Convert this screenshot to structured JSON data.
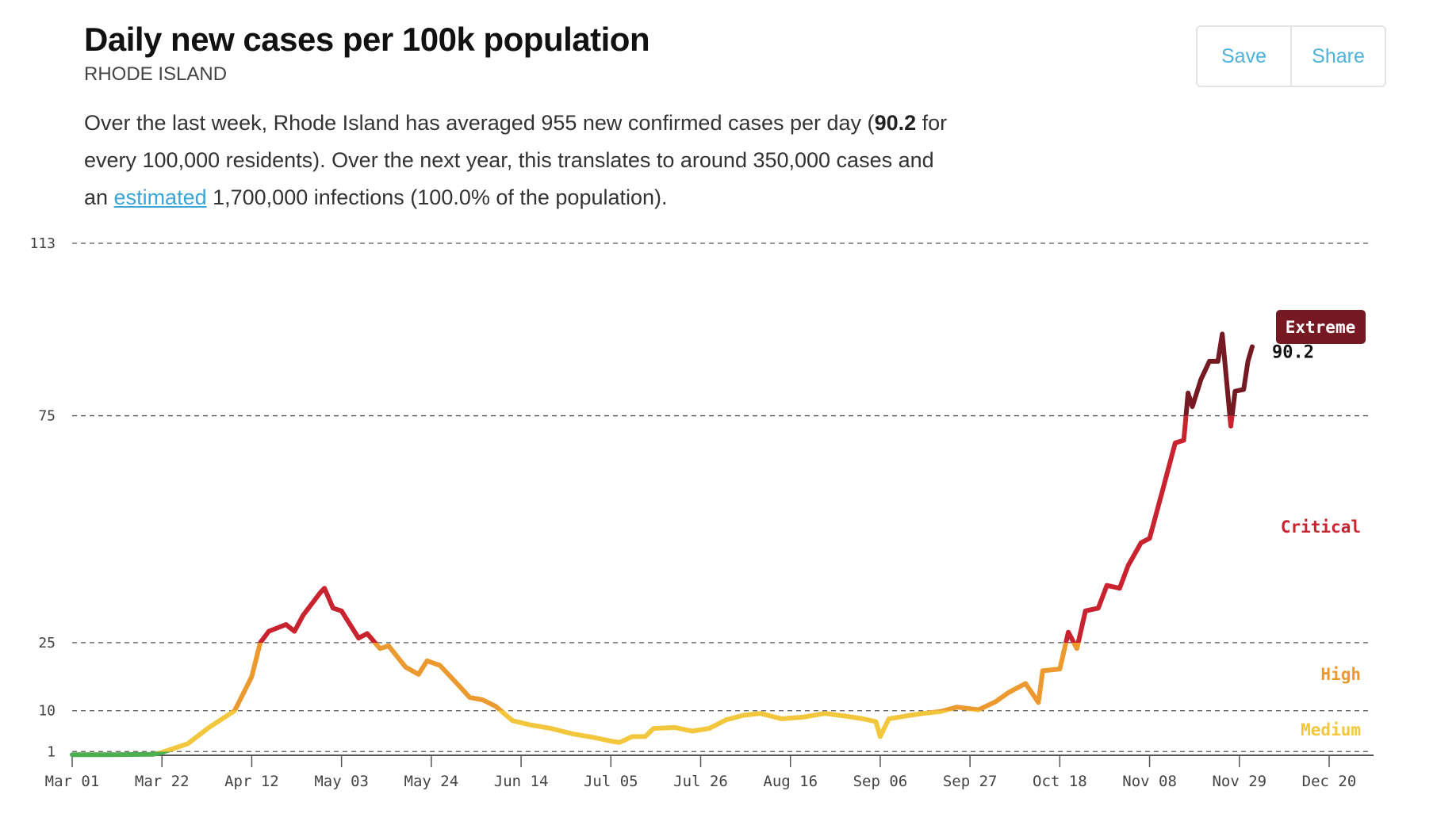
{
  "header": {
    "title": "Daily new cases per 100k population",
    "subtitle": "RHODE ISLAND",
    "summary": {
      "part1": "Over the last week, Rhode Island has averaged 955 new confirmed cases per day (",
      "bold": "90.2",
      "part2": " for every 100,000 residents). Over the next year, this translates to around 350,000 cases and an ",
      "link": "estimated",
      "part3": " 1,700,000 infections (100.0% of the population)."
    }
  },
  "toolbar": {
    "save_label": "Save",
    "share_label": "Share"
  },
  "colors": {
    "low": "#4caf50",
    "medium": "#f2c73d",
    "high": "#ec9a30",
    "critical": "#c9232f",
    "extreme": "#751a22",
    "link": "#3ba6d6"
  },
  "chart_data": {
    "type": "line",
    "y_ticks": [
      1,
      10,
      25,
      75,
      113
    ],
    "ylim": [
      0,
      113
    ],
    "x_ticks": [
      "Mar 01",
      "Mar 22",
      "Apr 12",
      "May 03",
      "May 24",
      "Jun 14",
      "Jul 05",
      "Jul 26",
      "Aug 16",
      "Sep 06",
      "Sep 27",
      "Oct 18",
      "Nov 08",
      "Nov 29",
      "Dec 20"
    ],
    "xlim": [
      "Mar 01",
      "Dec 20"
    ],
    "grid": "horizontal dashed",
    "thresholds": [
      1,
      10,
      25,
      75
    ],
    "levels": [
      {
        "label": "Extreme",
        "color": "#751a22",
        "boxed": true
      },
      {
        "label": "Critical",
        "color": "#c9232f"
      },
      {
        "label": "High",
        "color": "#ec9a30"
      },
      {
        "label": "Medium",
        "color": "#f2c73d"
      }
    ],
    "last_value_label": "90.2",
    "series": [
      {
        "x": [
          "Mar 01",
          "Mar 10",
          "Mar 20",
          "Mar 22",
          "Mar 28",
          "Apr 02",
          "Apr 08",
          "Apr 12",
          "Apr 14",
          "Apr 16",
          "Apr 20",
          "Apr 22",
          "Apr 24",
          "Apr 28",
          "Apr 29",
          "May 01",
          "May 03",
          "May 07",
          "May 09",
          "May 12",
          "May 14",
          "May 18",
          "May 21",
          "May 23",
          "May 26",
          "May 30",
          "Jun 02",
          "Jun 05",
          "Jun 08",
          "Jun 12",
          "Jun 16",
          "Jun 21",
          "Jun 26",
          "Jul 01",
          "Jul 05",
          "Jul 07",
          "Jul 10",
          "Jul 13",
          "Jul 15",
          "Jul 20",
          "Jul 24",
          "Jul 28",
          "Aug 01",
          "Aug 05",
          "Aug 09",
          "Aug 14",
          "Aug 19",
          "Aug 24",
          "Aug 29",
          "Sep 02",
          "Sep 05",
          "Sep 06",
          "Sep 08",
          "Sep 13",
          "Sep 16",
          "Sep 20",
          "Sep 24",
          "Sep 29",
          "Oct 03",
          "Oct 06",
          "Oct 10",
          "Oct 13",
          "Oct 14",
          "Oct 18",
          "Oct 20",
          "Oct 22",
          "Oct 24",
          "Oct 27",
          "Oct 29",
          "Nov 01",
          "Nov 03",
          "Nov 06",
          "Nov 08",
          "Nov 11",
          "Nov 14",
          "Nov 16",
          "Nov 17",
          "Nov 18",
          "Nov 20",
          "Nov 22",
          "Nov 24",
          "Nov 25",
          "Nov 27",
          "Nov 28",
          "Nov 30",
          "Dec 01",
          "Dec 02"
        ],
        "values": [
          0.3,
          0.3,
          0.4,
          0.8,
          2.7,
          6.3,
          10,
          17.5,
          25,
          27.5,
          29,
          27.5,
          31,
          36,
          37,
          32.6,
          32,
          26,
          27,
          23.7,
          24.3,
          19.6,
          18,
          21,
          20,
          16,
          12.9,
          12.4,
          11,
          7.8,
          6.9,
          6.1,
          4.9,
          4.1,
          3.3,
          3,
          4.3,
          4.3,
          6.1,
          6.3,
          5.5,
          6.1,
          8,
          9,
          9.4,
          8.2,
          8.6,
          9.4,
          8.8,
          8.2,
          7.6,
          4.3,
          8.2,
          9,
          9.4,
          9.8,
          10.8,
          10.2,
          12,
          14,
          16,
          11.8,
          18.8,
          19.2,
          27.3,
          23.7,
          32,
          32.6,
          37.6,
          37,
          42,
          47,
          48,
          58.4,
          69,
          69.6,
          80,
          77,
          83,
          87,
          87,
          93,
          72.7,
          80.4,
          80.8,
          87,
          90.2
        ]
      }
    ]
  }
}
